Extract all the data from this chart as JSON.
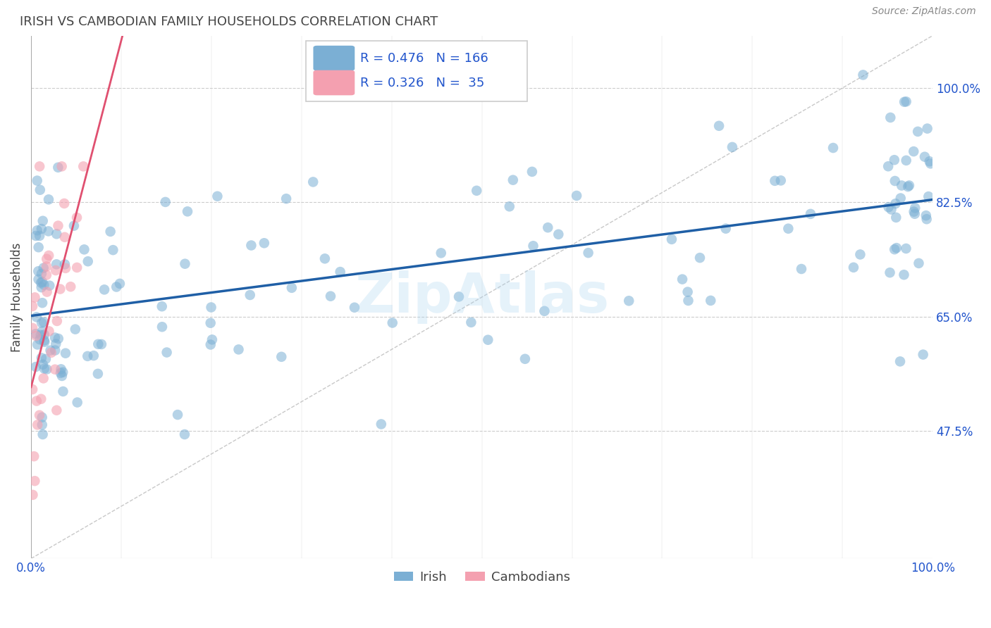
{
  "title": "IRISH VS CAMBODIAN FAMILY HOUSEHOLDS CORRELATION CHART",
  "source": "Source: ZipAtlas.com",
  "ylabel": "Family Households",
  "x_tick_labels": [
    "0.0%",
    "100.0%"
  ],
  "y_tick_labels": [
    "47.5%",
    "65.0%",
    "82.5%",
    "100.0%"
  ],
  "y_tick_values": [
    0.475,
    0.65,
    0.825,
    1.0
  ],
  "x_range": [
    0.0,
    1.0
  ],
  "y_range": [
    0.28,
    1.08
  ],
  "legend_irish": "Irish",
  "legend_cambodian": "Cambodians",
  "R_irish": 0.476,
  "N_irish": 166,
  "R_cambodian": 0.326,
  "N_cambodian": 35,
  "irish_color": "#7bafd4",
  "cambodian_color": "#f4a0b0",
  "irish_line_color": "#1f5fa6",
  "cambodian_line_color": "#e05070",
  "watermark": "ZipAtlas",
  "title_color": "#444444",
  "source_color": "#888888",
  "tick_color": "#2255cc",
  "grid_color": "#cccccc",
  "ref_line_color": "#bbbbbb"
}
